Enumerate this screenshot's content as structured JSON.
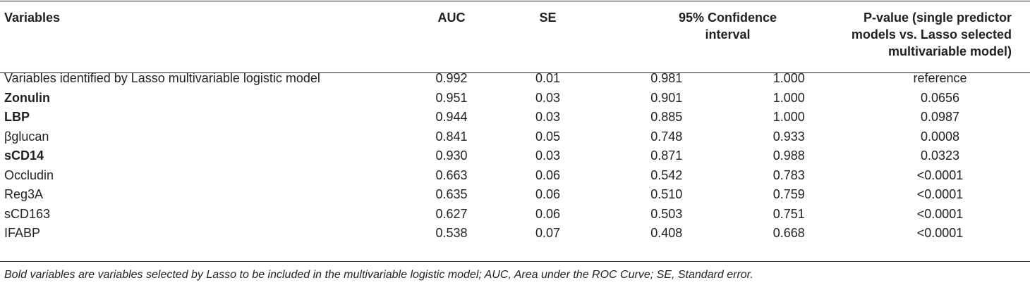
{
  "table": {
    "headers": {
      "variables": "Variables",
      "auc": "AUC",
      "se": "SE",
      "ci_line1": "95% Confidence",
      "ci_line2": "interval",
      "p_line1": "P-value (single predictor",
      "p_line2": "models vs. Lasso selected",
      "p_line3": "multivariable model)"
    },
    "rows": [
      {
        "name": "Variables identified by Lasso multivariable logistic model",
        "bold": false,
        "auc": "0.992",
        "se": "0.01",
        "ci_low": "0.981",
        "ci_high": "1.000",
        "p": "reference"
      },
      {
        "name": "Zonulin",
        "bold": true,
        "auc": "0.951",
        "se": "0.03",
        "ci_low": "0.901",
        "ci_high": "1.000",
        "p": "0.0656"
      },
      {
        "name": "LBP",
        "bold": true,
        "auc": "0.944",
        "se": "0.03",
        "ci_low": "0.885",
        "ci_high": "1.000",
        "p": "0.0987"
      },
      {
        "name": "βglucan",
        "bold": false,
        "auc": "0.841",
        "se": "0.05",
        "ci_low": "0.748",
        "ci_high": "0.933",
        "p": "0.0008"
      },
      {
        "name": "sCD14",
        "bold": true,
        "auc": "0.930",
        "se": "0.03",
        "ci_low": "0.871",
        "ci_high": "0.988",
        "p": "0.0323"
      },
      {
        "name": "Occludin",
        "bold": false,
        "auc": "0.663",
        "se": "0.06",
        "ci_low": "0.542",
        "ci_high": "0.783",
        "p": "<0.0001"
      },
      {
        "name": "Reg3A",
        "bold": false,
        "auc": "0.635",
        "se": "0.06",
        "ci_low": "0.510",
        "ci_high": "0.759",
        "p": "<0.0001"
      },
      {
        "name": "sCD163",
        "bold": false,
        "auc": "0.627",
        "se": "0.06",
        "ci_low": "0.503",
        "ci_high": "0.751",
        "p": "<0.0001"
      },
      {
        "name": "IFABP",
        "bold": false,
        "auc": "0.538",
        "se": "0.07",
        "ci_low": "0.408",
        "ci_high": "0.668",
        "p": "<0.0001"
      }
    ]
  },
  "footnote": "Bold variables are variables selected by Lasso to be included in the multivariable logistic model; AUC, Area under the ROC Curve; SE, Standard error."
}
